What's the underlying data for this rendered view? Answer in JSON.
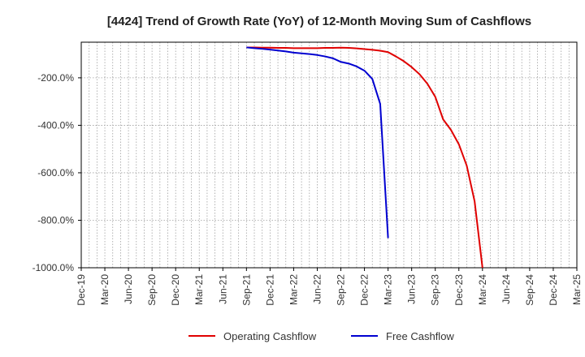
{
  "chart_data": {
    "type": "line",
    "title": "[4424]  Trend of Growth Rate (YoY) of 12-Month Moving Sum of Cashflows",
    "xlabel": "",
    "ylabel": "",
    "x_ticks": [
      "Dec-19",
      "Mar-20",
      "Jun-20",
      "Sep-20",
      "Dec-20",
      "Mar-21",
      "Jun-21",
      "Sep-21",
      "Dec-21",
      "Mar-22",
      "Jun-22",
      "Sep-22",
      "Dec-22",
      "Mar-23",
      "Jun-23",
      "Sep-23",
      "Dec-23",
      "Mar-24",
      "Jun-24",
      "Sep-24",
      "Dec-24",
      "Mar-25"
    ],
    "xlim": [
      "Dec-19",
      "Mar-25"
    ],
    "y_ticks": [
      -200,
      -400,
      -600,
      -800,
      -1000
    ],
    "y_tick_labels": [
      "-200.0%",
      "-400.0%",
      "-600.0%",
      "-800.0%",
      "-1000.0%"
    ],
    "ylim": [
      -1000,
      -50
    ],
    "grid": true,
    "legend_position": "bottom",
    "series": [
      {
        "name": "Operating Cashflow",
        "color": "#e00000",
        "points": [
          [
            "2021-09",
            -72
          ],
          [
            "2021-10",
            -72
          ],
          [
            "2021-11",
            -73
          ],
          [
            "2021-12",
            -73
          ],
          [
            "2022-01",
            -74
          ],
          [
            "2022-02",
            -74
          ],
          [
            "2022-03",
            -75
          ],
          [
            "2022-04",
            -75
          ],
          [
            "2022-05",
            -75
          ],
          [
            "2022-06",
            -75
          ],
          [
            "2022-07",
            -74
          ],
          [
            "2022-08",
            -74
          ],
          [
            "2022-09",
            -73
          ],
          [
            "2022-10",
            -74
          ],
          [
            "2022-11",
            -76
          ],
          [
            "2022-12",
            -79
          ],
          [
            "2023-01",
            -82
          ],
          [
            "2023-02",
            -86
          ],
          [
            "2023-03",
            -92
          ],
          [
            "2023-04",
            -110
          ],
          [
            "2023-05",
            -130
          ],
          [
            "2023-06",
            -155
          ],
          [
            "2023-07",
            -185
          ],
          [
            "2023-08",
            -225
          ],
          [
            "2023-09",
            -280
          ],
          [
            "2023-10",
            -375
          ],
          [
            "2023-11",
            -420
          ],
          [
            "2023-12",
            -480
          ],
          [
            "2024-01",
            -570
          ],
          [
            "2024-02",
            -720
          ],
          [
            "2024-03",
            -1000
          ]
        ]
      },
      {
        "name": "Free Cashflow",
        "color": "#0000d0",
        "points": [
          [
            "2021-09",
            -72
          ],
          [
            "2021-10",
            -75
          ],
          [
            "2021-11",
            -78
          ],
          [
            "2021-12",
            -81
          ],
          [
            "2022-01",
            -85
          ],
          [
            "2022-02",
            -89
          ],
          [
            "2022-03",
            -94
          ],
          [
            "2022-04",
            -97
          ],
          [
            "2022-05",
            -100
          ],
          [
            "2022-06",
            -104
          ],
          [
            "2022-07",
            -110
          ],
          [
            "2022-08",
            -118
          ],
          [
            "2022-09",
            -133
          ],
          [
            "2022-10",
            -140
          ],
          [
            "2022-11",
            -152
          ],
          [
            "2022-12",
            -170
          ],
          [
            "2023-01",
            -205
          ],
          [
            "2023-02",
            -310
          ],
          [
            "2023-03",
            -875
          ]
        ]
      }
    ]
  }
}
